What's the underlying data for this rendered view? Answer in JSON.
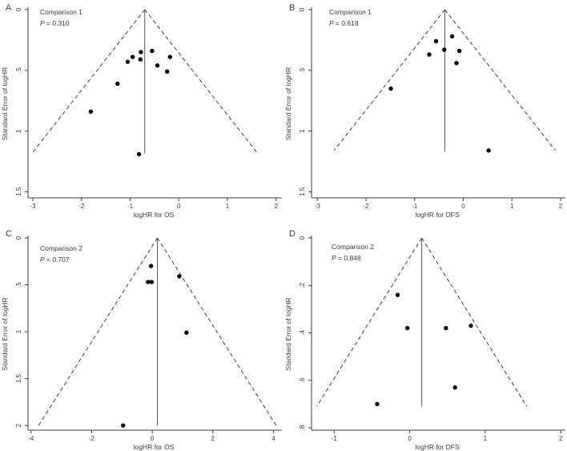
{
  "figure": {
    "background": "#ffffff",
    "text_color": "#3a3a3a",
    "axis_color": "#3c3c3c",
    "funnel_line_color": "#2a2a2a",
    "pooled_line_color": "#555555",
    "point_color": "#000000"
  },
  "chart_data": [
    {
      "type": "scatter",
      "panel_letter": "A",
      "comparison_label": "Comparison 1",
      "p_prefix": "P",
      "p_text": " = 0.310",
      "xlabel": "logHR for OS",
      "ylabel": "Standard Error of logHR",
      "xlim": [
        -3.1,
        2.07
      ],
      "ylim": [
        0,
        1.55
      ],
      "xticks": [
        -3,
        -2,
        -1,
        0,
        1,
        2
      ],
      "xtick_labels": [
        "-3",
        "-2",
        "-1",
        "0",
        "1",
        "2"
      ],
      "yticks": [
        0,
        0.5,
        1,
        1.5
      ],
      "ytick_labels": [
        "0",
        ".5",
        "1",
        "1.5"
      ],
      "pooled_center": -0.7,
      "funnel_slope": 1.96,
      "funnel_max_se": 1.185,
      "pooled_line_max_se": 1.185,
      "points": [
        [
          -1.81,
          0.84
        ],
        [
          -1.26,
          0.61
        ],
        [
          -1.05,
          0.43
        ],
        [
          -0.95,
          0.39
        ],
        [
          -0.82,
          1.19
        ],
        [
          -0.79,
          0.41
        ],
        [
          -0.78,
          0.35
        ],
        [
          -0.55,
          0.34
        ],
        [
          -0.44,
          0.46
        ],
        [
          -0.24,
          0.51
        ],
        [
          -0.18,
          0.39
        ]
      ]
    },
    {
      "type": "scatter",
      "panel_letter": "B",
      "comparison_label": "Comparison 1",
      "p_prefix": "P",
      "p_text": " = 0.618",
      "xlabel": "logHR for DFS",
      "ylabel": "Standard Error of logHR",
      "xlim": [
        -3.12,
        2.05
      ],
      "ylim": [
        0,
        1.55
      ],
      "xticks": [
        -3,
        -2,
        -1,
        0,
        1,
        2
      ],
      "xtick_labels": [
        "-3",
        "-2",
        "-1",
        "0",
        "1",
        "2"
      ],
      "yticks": [
        0,
        0.5,
        1,
        1.5
      ],
      "ytick_labels": [
        "0",
        ".5",
        "1",
        "1.5"
      ],
      "pooled_center": -0.38,
      "funnel_slope": 1.96,
      "funnel_max_se": 1.16,
      "pooled_line_max_se": 1.17,
      "points": [
        [
          -1.49,
          0.65
        ],
        [
          -0.7,
          0.37
        ],
        [
          -0.56,
          0.26
        ],
        [
          -0.39,
          0.33
        ],
        [
          -0.23,
          0.22
        ],
        [
          -0.14,
          0.44
        ],
        [
          -0.08,
          0.34
        ],
        [
          0.52,
          1.16
        ]
      ]
    },
    {
      "type": "scatter",
      "panel_letter": "C",
      "comparison_label": "Comparison 2",
      "p_prefix": "P",
      "p_text": " = 0.707",
      "xlabel": "logHR for OS",
      "ylabel": "Standard Error of logHR",
      "xlim": [
        -4.1,
        4.2
      ],
      "ylim": [
        0,
        2.05
      ],
      "xticks": [
        -4,
        -2,
        0,
        2,
        4
      ],
      "xtick_labels": [
        "-4",
        "-2",
        "0",
        "2",
        "4"
      ],
      "yticks": [
        0,
        0.5,
        1,
        1.5,
        2
      ],
      "ytick_labels": [
        "0",
        ".5",
        "1",
        "1.5",
        "2"
      ],
      "pooled_center": 0.17,
      "funnel_slope": 1.96,
      "funnel_max_se": 2.0,
      "pooled_line_max_se": 2.0,
      "points": [
        [
          -0.96,
          2.0
        ],
        [
          -0.14,
          0.47
        ],
        [
          -0.04,
          0.3
        ],
        [
          -0.02,
          0.47
        ],
        [
          0.89,
          0.41
        ],
        [
          1.13,
          1.01
        ]
      ]
    },
    {
      "type": "scatter",
      "panel_letter": "D",
      "comparison_label": "Comparison 2",
      "p_prefix": "P",
      "p_text": " = 0.848",
      "xlabel": "logHR for DFS",
      "ylabel": "Standard Error of logHR",
      "xlim": [
        -1.3,
        2.03
      ],
      "ylim": [
        0,
        0.81
      ],
      "xticks": [
        -1,
        0,
        1,
        2
      ],
      "xtick_labels": [
        "-1",
        "0",
        "1",
        "2"
      ],
      "yticks": [
        0,
        0.2,
        0.4,
        0.6,
        0.8
      ],
      "ytick_labels": [
        "0",
        ".2",
        ".4",
        ".6",
        ".8"
      ],
      "pooled_center": 0.16,
      "funnel_slope": 1.96,
      "funnel_max_se": 0.71,
      "pooled_line_max_se": 0.71,
      "points": [
        [
          -0.43,
          0.7
        ],
        [
          -0.16,
          0.24
        ],
        [
          -0.03,
          0.38
        ],
        [
          0.48,
          0.38
        ],
        [
          0.6,
          0.63
        ],
        [
          0.81,
          0.37
        ]
      ]
    }
  ]
}
